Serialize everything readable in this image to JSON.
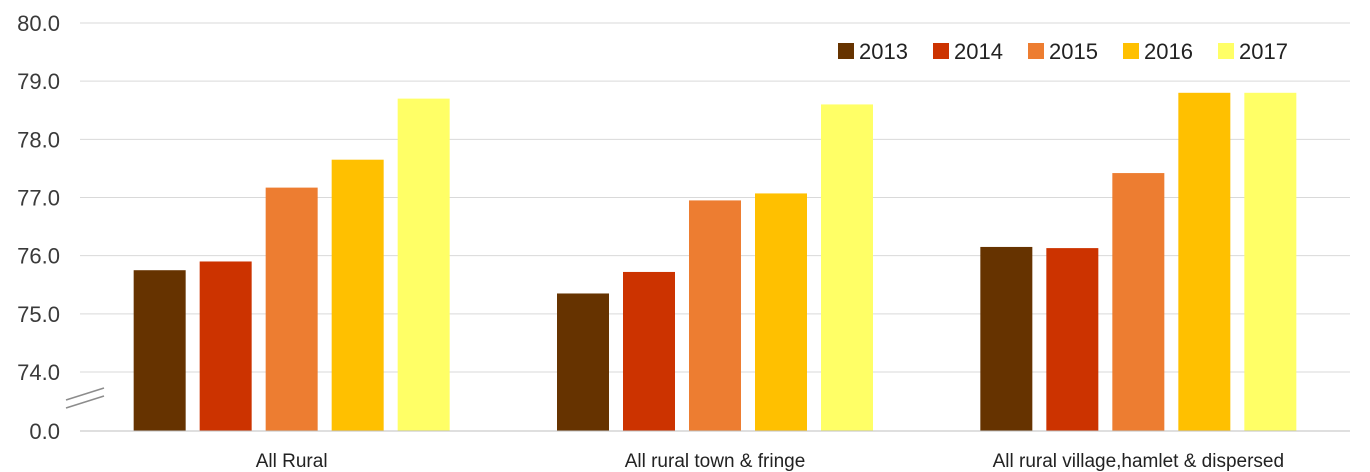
{
  "chart_data": {
    "type": "bar",
    "title": "",
    "xlabel": "",
    "ylabel": "",
    "categories": [
      "All Rural",
      "All rural town & fringe",
      "All rural village,hamlet & dispersed"
    ],
    "series": [
      {
        "name": "2013",
        "color": "#663300",
        "values": [
          75.75,
          75.35,
          76.15
        ]
      },
      {
        "name": "2014",
        "color": "#CC3300",
        "values": [
          75.9,
          75.72,
          76.13
        ]
      },
      {
        "name": "2015",
        "color": "#ED7D31",
        "values": [
          77.17,
          76.95,
          77.42
        ]
      },
      {
        "name": "2016",
        "color": "#FFC000",
        "values": [
          77.65,
          77.07,
          78.8
        ]
      },
      {
        "name": "2017",
        "color": "#FFFF66",
        "values": [
          78.7,
          78.6,
          78.8
        ]
      }
    ],
    "ylim": [
      74.0,
      80.0
    ],
    "y_axis_break": true,
    "y_tick_labels": [
      "0.0",
      "74.0",
      "75.0",
      "76.0",
      "77.0",
      "78.0",
      "79.0",
      "80.0"
    ],
    "grid": true,
    "legend_position": "top-right"
  }
}
